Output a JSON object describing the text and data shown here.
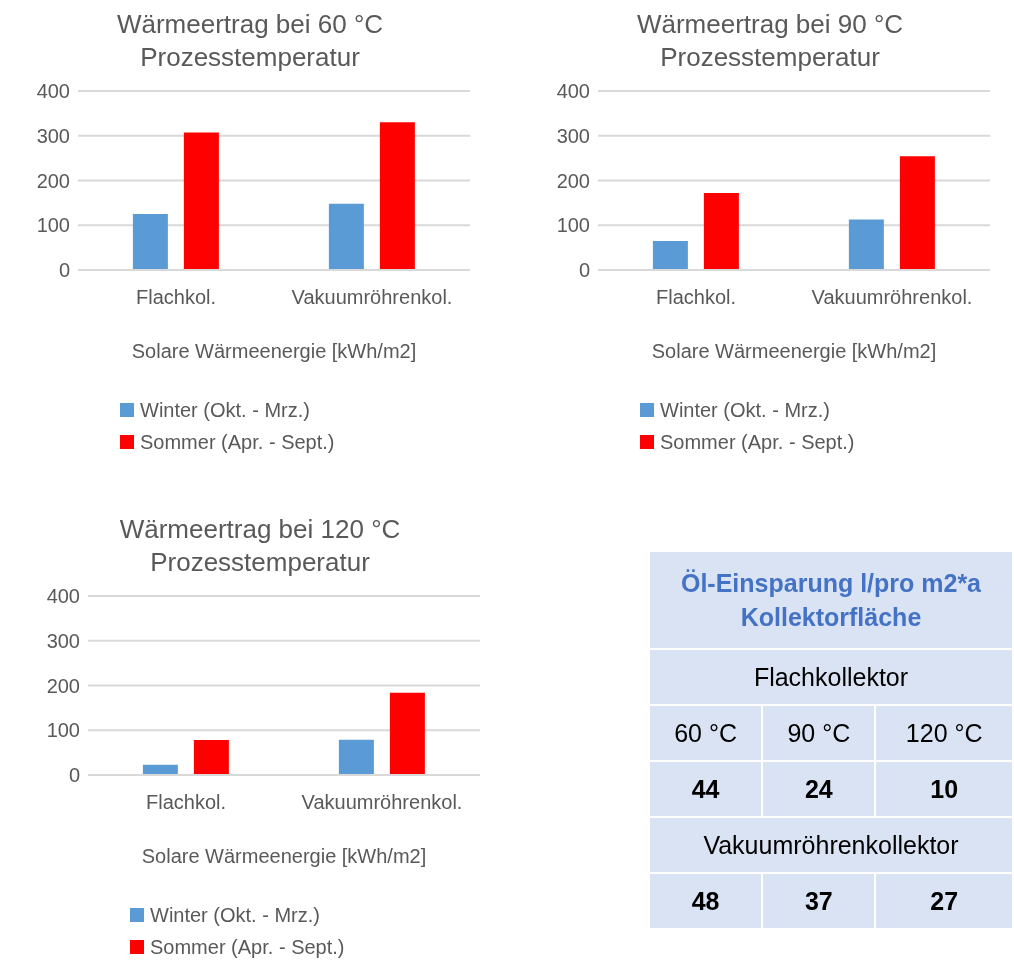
{
  "chart_data": [
    {
      "type": "bar",
      "title": "Wärmeertrag bei 60 °C Prozesstemperatur",
      "xlabel": "Solare Wärmeenergie [kWh/m2]",
      "categories": [
        "Flachkol.",
        "Vakuumröhrenkol."
      ],
      "series": [
        {
          "name": "Winter (Okt. - Mrz.)",
          "color": "#5b9bd5",
          "values": [
            125,
            148
          ]
        },
        {
          "name": "Sommer (Apr. - Sept.)",
          "color": "#ff0000",
          "values": [
            307,
            330
          ]
        }
      ],
      "ylim": [
        0,
        400
      ],
      "yticks": [
        0,
        100,
        200,
        300,
        400
      ],
      "grid": "y",
      "legend": "bottom"
    },
    {
      "type": "bar",
      "title": "Wärmeertrag bei 90 °C Prozesstemperatur",
      "xlabel": "Solare Wärmeenergie [kWh/m2]",
      "categories": [
        "Flachkol.",
        "Vakuumröhrenkol."
      ],
      "series": [
        {
          "name": "Winter (Okt. - Mrz.)",
          "color": "#5b9bd5",
          "values": [
            65,
            113
          ]
        },
        {
          "name": "Sommer (Apr. - Sept.)",
          "color": "#ff0000",
          "values": [
            172,
            254
          ]
        }
      ],
      "ylim": [
        0,
        400
      ],
      "yticks": [
        0,
        100,
        200,
        300,
        400
      ],
      "grid": "y",
      "legend": "bottom"
    },
    {
      "type": "bar",
      "title": "Wärmeertrag bei 120 °C Prozesstemperatur",
      "xlabel": "Solare Wärmeenergie [kWh/m2]",
      "categories": [
        "Flachkol.",
        "Vakuumröhrenkol."
      ],
      "series": [
        {
          "name": "Winter (Okt. - Mrz.)",
          "color": "#5b9bd5",
          "values": [
            23,
            79
          ]
        },
        {
          "name": "Sommer (Apr. - Sept.)",
          "color": "#ff0000",
          "values": [
            78,
            184
          ]
        }
      ],
      "ylim": [
        0,
        400
      ],
      "yticks": [
        0,
        100,
        200,
        300,
        400
      ],
      "grid": "y",
      "legend": "bottom"
    },
    {
      "type": "other",
      "title": "Öl-Einsparung l/pro m2*a Kollektorfläche",
      "annotations": [
        "Flachkollektor",
        "60 °C",
        "90 °C",
        "120 °C",
        "44",
        "24",
        "10",
        "Vakuumröhrenkollektor",
        "48",
        "37",
        "27"
      ]
    }
  ]
}
